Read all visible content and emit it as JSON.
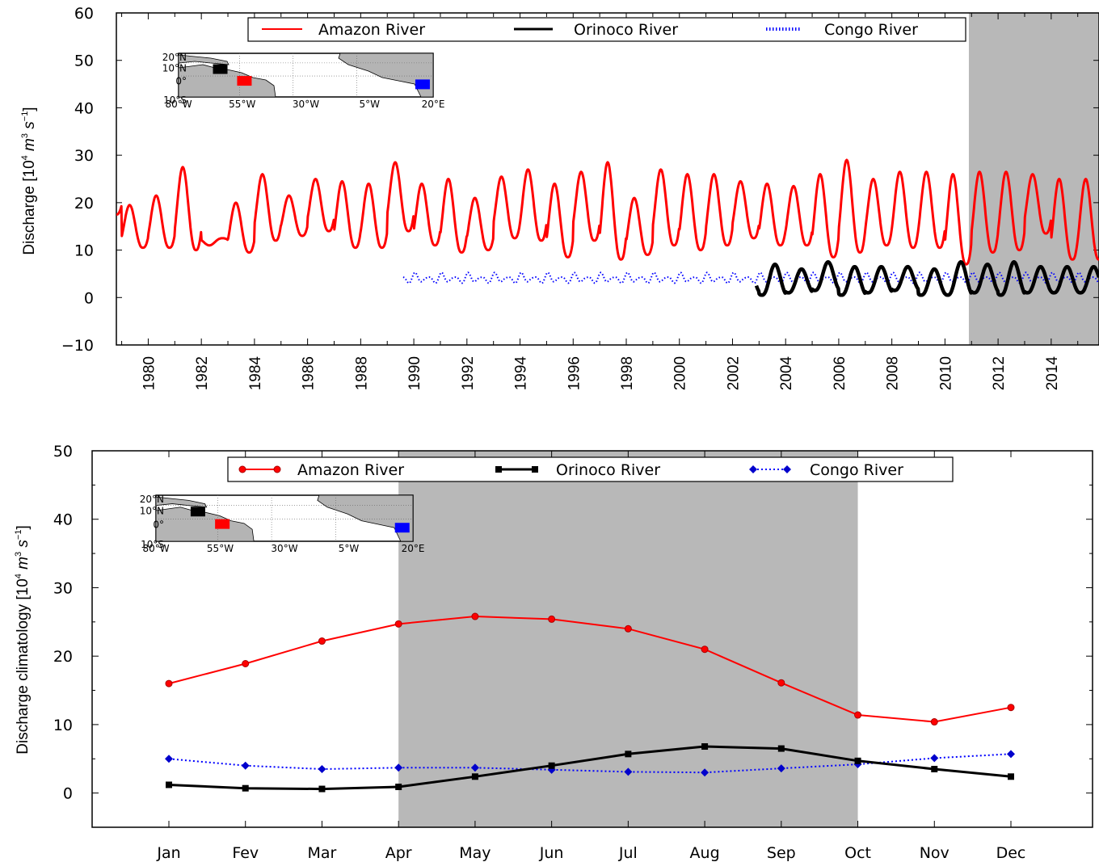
{
  "colors": {
    "amazon": "#ff0000",
    "orinoco": "#000000",
    "congo": "#0000ff",
    "congo_marker": "#0000cc",
    "amazon_marker_edge": "#aa0000",
    "shade": "#b8b8b8",
    "land": "#b4b4b4"
  },
  "legend": {
    "amazon": "Amazon River",
    "orinoco": "Orinoco River",
    "congo": "Congo River"
  },
  "inset_map": {
    "lat_labels": [
      "20°N",
      "10°N",
      "0°",
      "10°S"
    ],
    "lon_labels": [
      "80°W",
      "55°W",
      "30°W",
      "5°W",
      "20°E"
    ],
    "box_colors": [
      "#000000",
      "#ff0000",
      "#0000ff"
    ]
  },
  "chart_data": [
    {
      "type": "line",
      "ylabel_main": "Discharge [10",
      "ylabel_sup1": "4",
      "ylabel_mid": " m",
      "ylabel_sup2": "3",
      "ylabel_tail": " s",
      "ylabel_sup3": "−1",
      "ylabel_end": "]",
      "ylim": [
        -10,
        60
      ],
      "yticks": [
        "60",
        "50",
        "40",
        "30",
        "20",
        "10",
        "0",
        "−10"
      ],
      "ytick_values": [
        60,
        50,
        40,
        30,
        20,
        10,
        0,
        -10
      ],
      "xlim": [
        1978.8,
        2015.8
      ],
      "xticks": [
        "1980",
        "1982",
        "1984",
        "1986",
        "1988",
        "1990",
        "1992",
        "1994",
        "1996",
        "1998",
        "2000",
        "2002",
        "2004",
        "2006",
        "2008",
        "2010",
        "2012",
        "2014"
      ],
      "shaded_region": [
        2010.9,
        2015.8
      ],
      "legend_position": "top",
      "series": [
        {
          "name": "Amazon River",
          "style": "solid",
          "x_range": [
            1978.8,
            2015.8
          ],
          "peak_month_fraction": 0.3,
          "annual_peaks": [
            25.5,
            19.5,
            21.5,
            27.5,
            11.0,
            20.0,
            26.0,
            21.5,
            25.0,
            24.5,
            24.0,
            28.5,
            24.0,
            25.0,
            21.0,
            25.5,
            27.0,
            24.0,
            26.5,
            28.5,
            21.0,
            27.0,
            26.0,
            26.0,
            24.5,
            24.0,
            23.5,
            26.0,
            29.0,
            25.0,
            26.5,
            26.5,
            26.0,
            26.5,
            26.5,
            26.0,
            25.0
          ],
          "annual_troughs": [
            17.5,
            10.5,
            10.5,
            10.0,
            12.5,
            9.5,
            12.0,
            13.0,
            14.0,
            10.5,
            10.5,
            14.0,
            11.0,
            9.5,
            10.0,
            12.5,
            12.0,
            8.5,
            12.0,
            8.0,
            9.0,
            11.0,
            10.0,
            11.0,
            12.5,
            11.0,
            11.0,
            8.5,
            9.5,
            11.0,
            10.5,
            10.5,
            7.0,
            9.5,
            10.0,
            13.5,
            8.0
          ]
        },
        {
          "name": "Orinoco River",
          "style": "solid-thick",
          "x_range": [
            2002.9,
            2015.8
          ],
          "peak_month_fraction": 0.6,
          "annual_peaks": [
            7.0,
            7.0,
            6.0,
            7.5,
            6.5,
            6.5,
            6.5,
            6.0,
            7.5,
            7.0,
            7.5,
            6.5,
            6.5
          ],
          "annual_troughs": [
            1.0,
            0.5,
            1.0,
            1.5,
            0.5,
            1.0,
            1.5,
            0.5,
            0.5,
            1.0,
            0.5,
            1.0,
            1.0
          ]
        },
        {
          "name": "Congo River",
          "style": "dotted",
          "x_range": [
            1989.6,
            2015.8
          ],
          "mean": 4.0,
          "amplitude": 1.3
        }
      ]
    },
    {
      "type": "line",
      "ylabel": "Discharge climatology [10",
      "ylabel_sup1": "4",
      "ylabel_mid": " m",
      "ylabel_sup2": "3",
      "ylabel_tail": " s",
      "ylabel_sup3": "−1",
      "ylabel_end": "]",
      "ylim": [
        -5,
        50
      ],
      "yticks": [
        "50",
        "40",
        "30",
        "20",
        "10",
        "0"
      ],
      "ytick_values": [
        50,
        40,
        30,
        20,
        10,
        0
      ],
      "categories": [
        "Jan",
        "Fev",
        "Mar",
        "Apr",
        "May",
        "Jun",
        "Jul",
        "Aug",
        "Sep",
        "Oct",
        "Nov",
        "Dec"
      ],
      "shaded_region": [
        "Apr",
        "Oct"
      ],
      "legend_position": "top",
      "series": [
        {
          "name": "Amazon River",
          "marker": "circle",
          "values": [
            16.0,
            18.9,
            22.2,
            24.7,
            25.8,
            25.4,
            24.0,
            21.0,
            16.1,
            11.4,
            10.4,
            12.5
          ]
        },
        {
          "name": "Orinoco River",
          "marker": "square",
          "values": [
            1.2,
            0.7,
            0.6,
            0.9,
            2.4,
            4.0,
            5.7,
            6.8,
            6.5,
            4.7,
            3.5,
            2.4
          ]
        },
        {
          "name": "Congo River",
          "marker": "diamond",
          "values": [
            5.0,
            4.0,
            3.5,
            3.7,
            3.7,
            3.4,
            3.1,
            3.0,
            3.6,
            4.2,
            5.1,
            5.7
          ]
        }
      ]
    }
  ]
}
